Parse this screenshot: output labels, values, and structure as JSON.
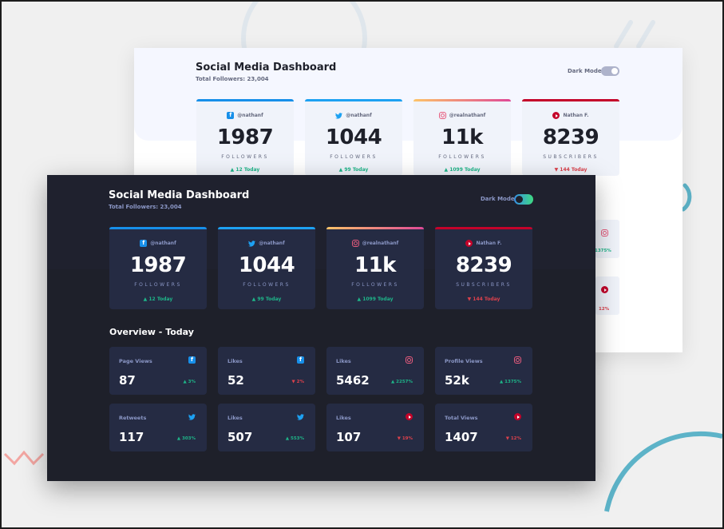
{
  "colors": {
    "facebook": "#178fe9",
    "twitter": "#1da1f2",
    "instagram_gradient": [
      "#fdc468",
      "#df4996"
    ],
    "youtube": "#c4032a",
    "up": "#1eb589",
    "down": "#dc414c"
  },
  "light": {
    "title": "Social Media Dashboard",
    "total": "Total Followers: 23,004",
    "dark_mode_label": "Dark Mode",
    "cards": [
      {
        "platform": "facebook",
        "icon": "facebook-icon",
        "handle": "@nathanf",
        "count": "1987",
        "caption": "FOLLOWERS",
        "delta": "▲ 12 Today",
        "trend": "up"
      },
      {
        "platform": "twitter",
        "icon": "twitter-icon",
        "handle": "@nathanf",
        "count": "1044",
        "caption": "FOLLOWERS",
        "delta": "▲ 99 Today",
        "trend": "up"
      },
      {
        "platform": "instagram",
        "icon": "instagram-icon",
        "handle": "@realnathanf",
        "count": "11k",
        "caption": "FOLLOWERS",
        "delta": "▲ 1099 Today",
        "trend": "up"
      },
      {
        "platform": "youtube",
        "icon": "youtube-icon",
        "handle": "Nathan F.",
        "count": "8239",
        "caption": "SUBSCRIBERS",
        "delta": "▼ 144 Today",
        "trend": "down"
      }
    ],
    "overview_partial": [
      {
        "icon": "instagram-icon",
        "pct": "1375%",
        "trend": "up"
      },
      {
        "icon": "youtube-icon",
        "pct": "12%",
        "trend": "down"
      }
    ]
  },
  "dark": {
    "title": "Social Media Dashboard",
    "total": "Total Followers: 23,004",
    "dark_mode_label": "Dark Mode",
    "cards": [
      {
        "platform": "facebook",
        "icon": "facebook-icon",
        "handle": "@nathanf",
        "count": "1987",
        "caption": "FOLLOWERS",
        "delta": "▲ 12 Today",
        "trend": "up"
      },
      {
        "platform": "twitter",
        "icon": "twitter-icon",
        "handle": "@nathanf",
        "count": "1044",
        "caption": "FOLLOWERS",
        "delta": "▲ 99 Today",
        "trend": "up"
      },
      {
        "platform": "instagram",
        "icon": "instagram-icon",
        "handle": "@realnathanf",
        "count": "11k",
        "caption": "FOLLOWERS",
        "delta": "▲ 1099 Today",
        "trend": "up"
      },
      {
        "platform": "youtube",
        "icon": "youtube-icon",
        "handle": "Nathan F.",
        "count": "8239",
        "caption": "SUBSCRIBERS",
        "delta": "▼ 144 Today",
        "trend": "down"
      }
    ],
    "overview_title": "Overview - Today",
    "overview": [
      {
        "label": "Page Views",
        "icon": "facebook-icon",
        "value": "87",
        "pct": "▲ 3%",
        "trend": "up"
      },
      {
        "label": "Likes",
        "icon": "facebook-icon",
        "value": "52",
        "pct": "▼ 2%",
        "trend": "down"
      },
      {
        "label": "Likes",
        "icon": "instagram-icon",
        "value": "5462",
        "pct": "▲ 2257%",
        "trend": "up"
      },
      {
        "label": "Profile Views",
        "icon": "instagram-icon",
        "value": "52k",
        "pct": "▲ 1375%",
        "trend": "up"
      },
      {
        "label": "Retweets",
        "icon": "twitter-icon",
        "value": "117",
        "pct": "▲ 303%",
        "trend": "up"
      },
      {
        "label": "Likes",
        "icon": "twitter-icon",
        "value": "507",
        "pct": "▲ 553%",
        "trend": "up"
      },
      {
        "label": "Likes",
        "icon": "youtube-icon",
        "value": "107",
        "pct": "▼ 19%",
        "trend": "down"
      },
      {
        "label": "Total Views",
        "icon": "youtube-icon",
        "value": "1407",
        "pct": "▼ 12%",
        "trend": "down"
      }
    ]
  }
}
